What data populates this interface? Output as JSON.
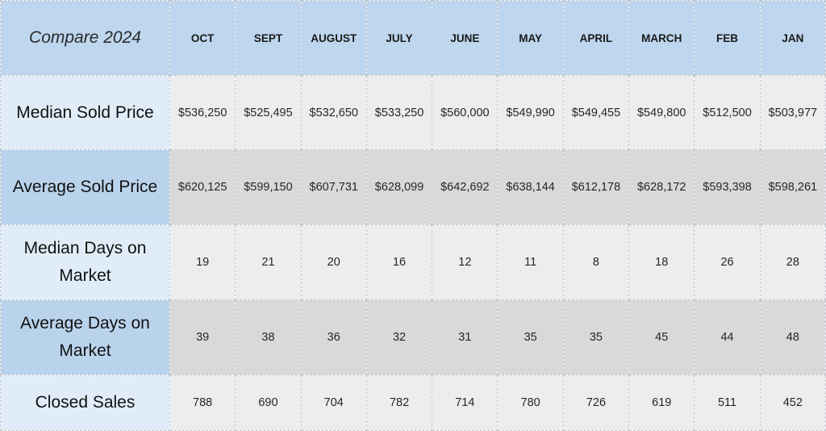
{
  "chart_data": {
    "type": "table",
    "title": "Compare 2024",
    "columns": [
      "OCT",
      "SEPT",
      "AUGUST",
      "JULY",
      "JUNE",
      "MAY",
      "APRIL",
      "MARCH",
      "FEB",
      "JAN"
    ],
    "rows": [
      {
        "label": "Median Sold Price",
        "values": [
          "$536,250",
          "$525,495",
          "$532,650",
          "$533,250",
          "$560,000",
          "$549,990",
          "$549,455",
          "$549,800",
          "$512,500",
          "$503,977"
        ]
      },
      {
        "label": "Average Sold Price",
        "values": [
          "$620,125",
          "$599,150",
          "$607,731",
          "$628,099",
          "$642,692",
          "$638,144",
          "$612,178",
          "$628,172",
          "$593,398",
          "$598,261"
        ]
      },
      {
        "label": "Median Days on Market",
        "values": [
          "19",
          "21",
          "20",
          "16",
          "12",
          "11",
          "8",
          "18",
          "26",
          "28"
        ]
      },
      {
        "label": "Average Days on Market",
        "values": [
          "39",
          "38",
          "36",
          "32",
          "31",
          "35",
          "35",
          "45",
          "44",
          "48"
        ]
      },
      {
        "label": "Closed Sales",
        "values": [
          "788",
          "690",
          "704",
          "782",
          "714",
          "780",
          "726",
          "619",
          "511",
          "452"
        ]
      }
    ]
  },
  "colors": {
    "header_bg": "#bed6ee",
    "row_label_light": "#e0edf9",
    "row_label_dark": "#bad3ec",
    "cell_light": "#ededed",
    "cell_dark": "#d9d9d9"
  }
}
